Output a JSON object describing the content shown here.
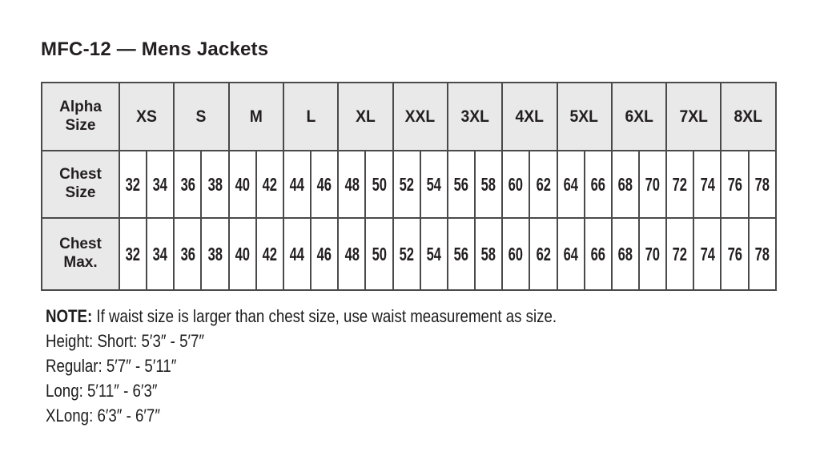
{
  "title": "MFC-12 — Mens Jackets",
  "table": {
    "row_headers": [
      "Alpha Size",
      "Chest Size",
      "Chest Max."
    ],
    "alpha_sizes": [
      "XS",
      "S",
      "M",
      "L",
      "XL",
      "XXL",
      "3XL",
      "4XL",
      "5XL",
      "6XL",
      "7XL",
      "8XL"
    ],
    "chest_size": [
      "32",
      "34",
      "36",
      "38",
      "40",
      "42",
      "44",
      "46",
      "48",
      "50",
      "52",
      "54",
      "56",
      "58",
      "60",
      "62",
      "64",
      "66",
      "68",
      "70",
      "72",
      "74",
      "76",
      "78"
    ],
    "chest_max": [
      "32",
      "34",
      "36",
      "38",
      "40",
      "42",
      "44",
      "46",
      "48",
      "50",
      "52",
      "54",
      "56",
      "58",
      "60",
      "62",
      "64",
      "66",
      "68",
      "70",
      "72",
      "74",
      "76",
      "78"
    ]
  },
  "notes": {
    "note_label": "NOTE:",
    "note_text": "If waist size is larger than chest size, use waist measurement as size.",
    "height_lines": [
      "Height: Short: 5′3″ - 5′7″",
      "Regular: 5′7″ - 5′11″",
      "Long: 5′11″ - 6′3″",
      "XLong: 6′3″ - 6′7″"
    ]
  },
  "colors": {
    "header_bg": "#e9e9ea",
    "border": "#4a4a4c",
    "text": "#231f20",
    "page_bg": "#ffffff"
  }
}
